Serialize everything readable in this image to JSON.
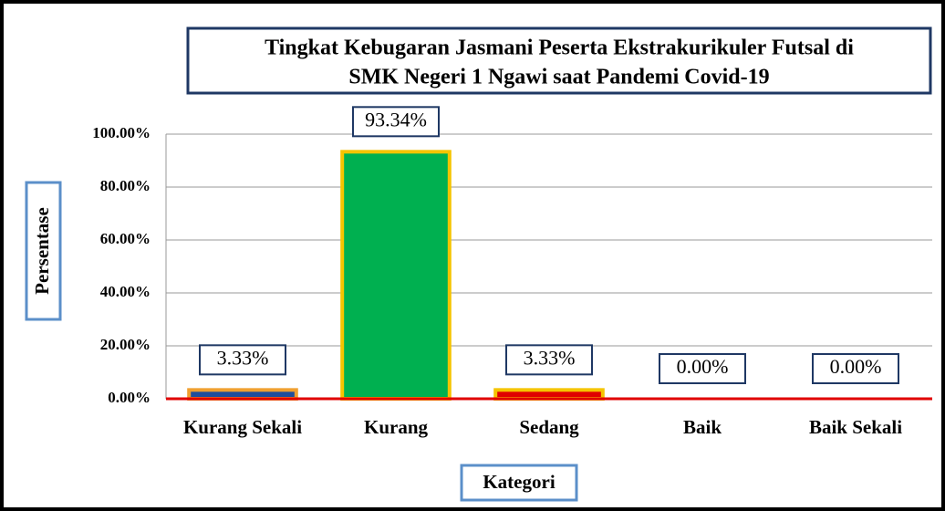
{
  "chart_data": {
    "type": "bar",
    "title": [
      "Tingkat Kebugaran Jasmani Peserta Ekstrakurikuler Futsal di",
      "SMK Negeri 1 Ngawi saat Pandemi Covid-19"
    ],
    "y_label": "Persentase",
    "x_label": "Kategori",
    "categories": [
      "Kurang Sekali",
      "Kurang",
      "Sedang",
      "Baik",
      "Baik Sekali"
    ],
    "values": [
      3.33,
      93.34,
      3.33,
      0,
      0
    ],
    "value_labels": [
      "3.33%",
      "93.34%",
      "3.33%",
      "0.00%",
      "0.00%"
    ],
    "colors": [
      "#1f4e9c",
      "#00b050",
      "#e00000",
      "#e00000",
      "#e00000"
    ],
    "border_colors": [
      "#f0a030",
      "#f5c400",
      "#f5c400",
      "#f5c400",
      "#f5c400"
    ],
    "ylim": [
      0,
      100
    ],
    "yticks": [
      {
        "value": 0,
        "label": "0.00%"
      },
      {
        "value": 20,
        "label": "20.00%"
      },
      {
        "value": 40,
        "label": "40.00%"
      },
      {
        "value": 60,
        "label": "60.00%"
      },
      {
        "value": 80,
        "label": "80.00%"
      },
      {
        "value": 100,
        "label": "100.00%"
      }
    ],
    "grid": true
  }
}
